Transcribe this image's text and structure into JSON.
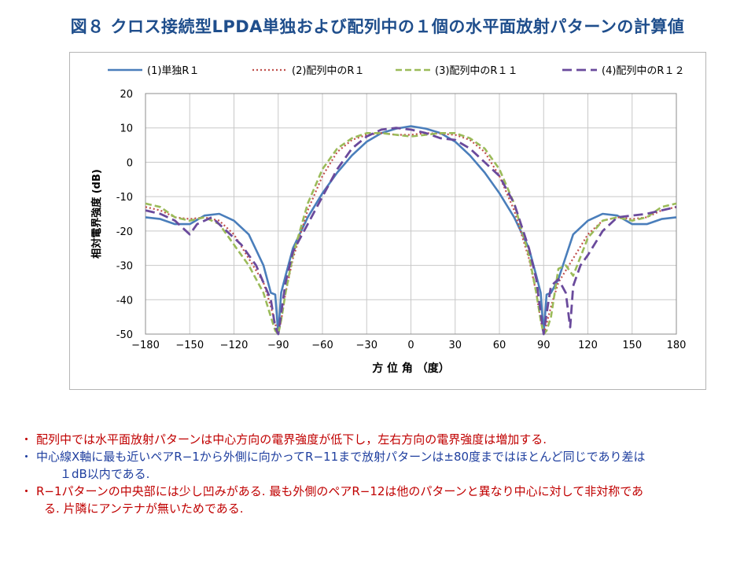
{
  "title": "図８  クロス接続型LPDA単独および配列中の１個の水平面放射パターンの計算値",
  "chart_data": {
    "type": "line",
    "xlabel": "方 位 角 （度）",
    "ylabel": "相対電界強度 (dB)",
    "xlim": [
      -180,
      180
    ],
    "ylim": [
      -50,
      20
    ],
    "xticks": [
      "−180",
      "−150",
      "−120",
      "−90",
      "−60",
      "−30",
      "0",
      "30",
      "60",
      "90",
      "120",
      "150",
      "180"
    ],
    "yticks": [
      "20",
      "10",
      "0",
      "-10",
      "-20",
      "-30",
      "-40",
      "-50"
    ],
    "grid": true,
    "legend_position": "top",
    "series": [
      {
        "name": "(1)単独R１",
        "color": "#4a7ebb",
        "style": "solid",
        "points": [
          [
            -180,
            -16
          ],
          [
            -170,
            -16.5
          ],
          [
            -160,
            -18
          ],
          [
            -150,
            -18
          ],
          [
            -140,
            -15.5
          ],
          [
            -130,
            -15
          ],
          [
            -120,
            -17
          ],
          [
            -110,
            -21
          ],
          [
            -100,
            -30
          ],
          [
            -95,
            -38
          ],
          [
            -92,
            -38.5
          ],
          [
            -90,
            -50
          ],
          [
            -88,
            -38
          ],
          [
            -85,
            -33
          ],
          [
            -80,
            -25
          ],
          [
            -70,
            -16
          ],
          [
            -60,
            -9
          ],
          [
            -50,
            -3
          ],
          [
            -40,
            2
          ],
          [
            -30,
            6
          ],
          [
            -20,
            8.5
          ],
          [
            -10,
            9.8
          ],
          [
            0,
            10.5
          ],
          [
            10,
            9.8
          ],
          [
            20,
            8.5
          ],
          [
            30,
            6
          ],
          [
            40,
            2
          ],
          [
            50,
            -3
          ],
          [
            60,
            -9
          ],
          [
            70,
            -16
          ],
          [
            80,
            -25
          ],
          [
            85,
            -33
          ],
          [
            88,
            -38
          ],
          [
            90,
            -50
          ],
          [
            92,
            -38.5
          ],
          [
            95,
            -38
          ],
          [
            100,
            -34
          ],
          [
            110,
            -21
          ],
          [
            120,
            -17
          ],
          [
            130,
            -15
          ],
          [
            140,
            -15.5
          ],
          [
            150,
            -18
          ],
          [
            160,
            -18
          ],
          [
            170,
            -16.5
          ],
          [
            180,
            -16
          ]
        ]
      },
      {
        "name": "(2)配列中のR１",
        "color": "#c0504d",
        "style": "dotted",
        "points": [
          [
            -180,
            -13
          ],
          [
            -170,
            -14
          ],
          [
            -160,
            -16
          ],
          [
            -150,
            -16.5
          ],
          [
            -140,
            -16
          ],
          [
            -130,
            -17
          ],
          [
            -120,
            -21
          ],
          [
            -110,
            -28
          ],
          [
            -100,
            -35
          ],
          [
            -95,
            -42
          ],
          [
            -92,
            -47
          ],
          [
            -90,
            -50
          ],
          [
            -88,
            -46
          ],
          [
            -85,
            -38
          ],
          [
            -80,
            -28
          ],
          [
            -70,
            -14
          ],
          [
            -60,
            -4
          ],
          [
            -50,
            3
          ],
          [
            -40,
            6.5
          ],
          [
            -30,
            8
          ],
          [
            -20,
            8.5
          ],
          [
            -10,
            8
          ],
          [
            0,
            8
          ],
          [
            10,
            8.5
          ],
          [
            20,
            8.3
          ],
          [
            30,
            8
          ],
          [
            40,
            6.5
          ],
          [
            50,
            3
          ],
          [
            60,
            -4
          ],
          [
            70,
            -14
          ],
          [
            80,
            -28
          ],
          [
            85,
            -38
          ],
          [
            88,
            -46
          ],
          [
            90,
            -50
          ],
          [
            92,
            -47
          ],
          [
            95,
            -42
          ],
          [
            100,
            -35
          ],
          [
            110,
            -28
          ],
          [
            120,
            -21
          ],
          [
            130,
            -17
          ],
          [
            140,
            -16
          ],
          [
            150,
            -16.5
          ],
          [
            160,
            -16
          ],
          [
            170,
            -14
          ],
          [
            180,
            -13
          ]
        ]
      },
      {
        "name": "(3)配列中のR１１",
        "color": "#9bbb59",
        "style": "dashed",
        "points": [
          [
            -180,
            -12
          ],
          [
            -170,
            -13
          ],
          [
            -160,
            -16
          ],
          [
            -150,
            -17
          ],
          [
            -140,
            -16
          ],
          [
            -130,
            -18
          ],
          [
            -120,
            -24
          ],
          [
            -110,
            -30
          ],
          [
            -100,
            -38
          ],
          [
            -95,
            -45
          ],
          [
            -92,
            -49
          ],
          [
            -90,
            -50
          ],
          [
            -88,
            -46
          ],
          [
            -85,
            -38
          ],
          [
            -80,
            -27
          ],
          [
            -70,
            -12
          ],
          [
            -60,
            -2
          ],
          [
            -50,
            4
          ],
          [
            -40,
            7
          ],
          [
            -30,
            8.5
          ],
          [
            -20,
            8.5
          ],
          [
            -10,
            8
          ],
          [
            0,
            7.5
          ],
          [
            10,
            8
          ],
          [
            20,
            8.5
          ],
          [
            30,
            8.5
          ],
          [
            40,
            7
          ],
          [
            50,
            4
          ],
          [
            60,
            -2
          ],
          [
            70,
            -12
          ],
          [
            80,
            -27
          ],
          [
            85,
            -38
          ],
          [
            88,
            -46
          ],
          [
            90,
            -50
          ],
          [
            92,
            -49
          ],
          [
            95,
            -45
          ],
          [
            100,
            -31
          ],
          [
            105,
            -30
          ],
          [
            110,
            -33
          ],
          [
            120,
            -22
          ],
          [
            130,
            -17
          ],
          [
            140,
            -16
          ],
          [
            150,
            -17
          ],
          [
            160,
            -16
          ],
          [
            170,
            -13
          ],
          [
            180,
            -12
          ]
        ]
      },
      {
        "name": "(4)配列中のR１２",
        "color": "#6a4a9c",
        "style": "longdash",
        "points": [
          [
            -180,
            -14
          ],
          [
            -170,
            -15
          ],
          [
            -160,
            -17
          ],
          [
            -155,
            -19
          ],
          [
            -150,
            -21
          ],
          [
            -145,
            -18
          ],
          [
            -135,
            -16
          ],
          [
            -125,
            -20
          ],
          [
            -115,
            -24
          ],
          [
            -105,
            -30
          ],
          [
            -100,
            -35
          ],
          [
            -95,
            -40
          ],
          [
            -92,
            -48
          ],
          [
            -90,
            -50
          ],
          [
            -88,
            -44
          ],
          [
            -85,
            -35
          ],
          [
            -80,
            -26
          ],
          [
            -70,
            -18
          ],
          [
            -60,
            -10
          ],
          [
            -50,
            -2
          ],
          [
            -40,
            4
          ],
          [
            -30,
            7.5
          ],
          [
            -20,
            9.5
          ],
          [
            -10,
            10
          ],
          [
            0,
            9.5
          ],
          [
            10,
            8.5
          ],
          [
            20,
            7
          ],
          [
            30,
            6.5
          ],
          [
            40,
            4
          ],
          [
            50,
            0
          ],
          [
            60,
            -4
          ],
          [
            70,
            -12
          ],
          [
            80,
            -25
          ],
          [
            85,
            -34
          ],
          [
            88,
            -44
          ],
          [
            90,
            -50
          ],
          [
            92,
            -44
          ],
          [
            95,
            -36
          ],
          [
            100,
            -34
          ],
          [
            105,
            -38
          ],
          [
            108,
            -48
          ],
          [
            110,
            -36
          ],
          [
            115,
            -30
          ],
          [
            120,
            -27
          ],
          [
            130,
            -20
          ],
          [
            140,
            -16
          ],
          [
            150,
            -15.5
          ],
          [
            160,
            -15
          ],
          [
            170,
            -14
          ],
          [
            180,
            -13
          ]
        ]
      }
    ]
  },
  "bullets": [
    {
      "marker": "・",
      "color": "#c00000",
      "lines": [
        "配列中では水平面放射パターンは中心方向の電界強度が低下し，左右方向の電界強度は増加する."
      ]
    },
    {
      "marker": "・",
      "color": "#1f3f9f",
      "lines": [
        "中心線X軸に最も近いペアR−1から外側に向かってR−11まで放射パターンは±80度まではほとんど同じであり差は",
        "１dB以内である."
      ]
    },
    {
      "marker": "・",
      "color": "#c00000",
      "lines": [
        "R−1パターンの中央部には少し凹みがある. 最も外側のペアR−12は他のパターンと異なり中心に対して非対称であ",
        "る. 片隣にアンテナが無いためである."
      ]
    }
  ]
}
